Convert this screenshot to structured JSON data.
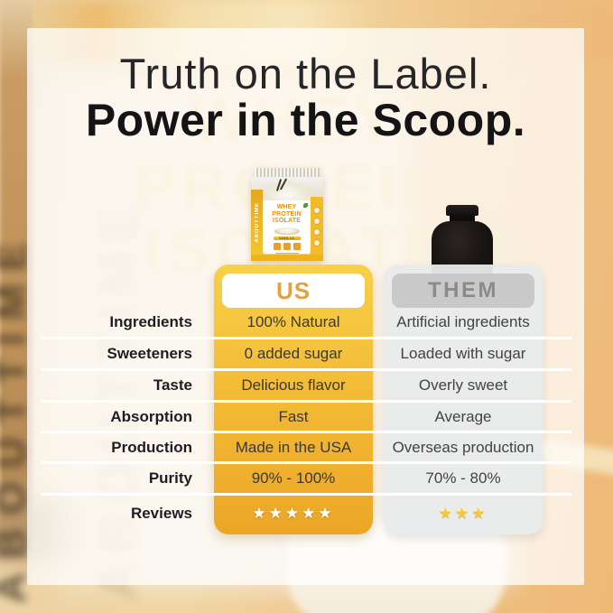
{
  "title": {
    "line1": "Truth on the Label.",
    "line2": "Power in the Scoop."
  },
  "background": {
    "vertical_brand_text": "ABOUTTIME",
    "ghost_lines": [
      "WHEY",
      "PROTEIN",
      "ISOLATE"
    ]
  },
  "products": {
    "us": {
      "brand": "ABOUTTIME",
      "label_line1": "WHEY",
      "label_line2": "PROTEIN",
      "label_line3": "ISOLATE",
      "flavor": "VANILLA"
    },
    "them": {
      "name": "black-protein-tub"
    }
  },
  "comparison": {
    "us_header": "US",
    "them_header": "THEM",
    "rows": [
      {
        "type": "text",
        "label": "Ingredients",
        "us": "100% Natural",
        "them": "Artificial ingredients"
      },
      {
        "type": "text",
        "label": "Sweeteners",
        "us": "0 added sugar",
        "them": "Loaded with sugar"
      },
      {
        "type": "text",
        "label": "Taste",
        "us": "Delicious flavor",
        "them": "Overly sweet"
      },
      {
        "type": "text",
        "label": "Absorption",
        "us": "Fast",
        "them": "Average"
      },
      {
        "type": "text",
        "label": "Production",
        "us": "Made in the USA",
        "them": "Overseas production"
      },
      {
        "type": "text",
        "label": "Purity",
        "us": "90% - 100%",
        "them": "70% - 80%"
      },
      {
        "type": "stars",
        "label": "Reviews",
        "us": 5,
        "them": 3
      }
    ]
  },
  "colors": {
    "us_column_top": "#F8D049",
    "us_column_bottom": "#ECA626",
    "us_header_text": "#E2A23C",
    "them_column": "#E9EAEB",
    "them_header_bg": "#C9C9CA",
    "them_header_text": "#8A8A8C",
    "us_stars": "#FFFFFF",
    "them_stars": "#F4C838",
    "divider": "#FFFFFF",
    "title_text": "#141417"
  }
}
